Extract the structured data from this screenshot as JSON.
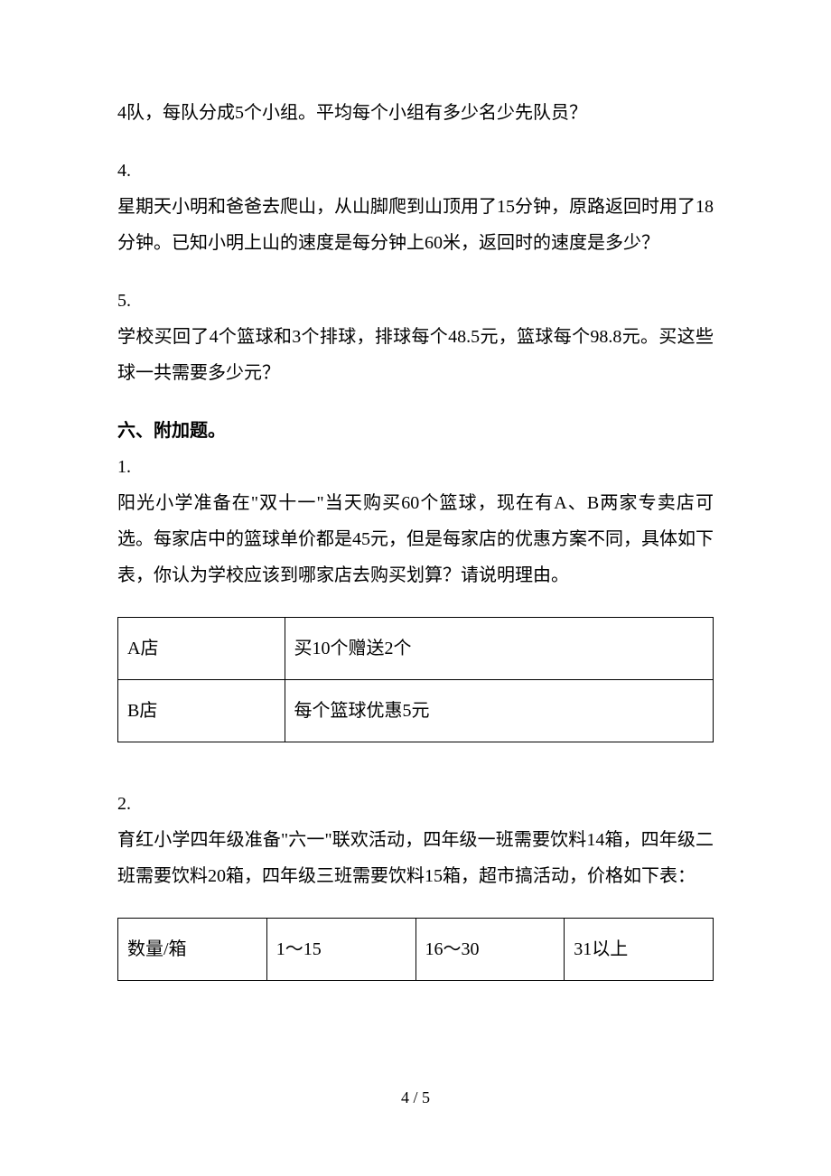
{
  "q3_cont": "4队，每队分成5个小组。平均每个小组有多少名少先队员？",
  "q4": {
    "num": "4.",
    "text": "星期天小明和爸爸去爬山，从山脚爬到山顶用了15分钟，原路返回时用了18分钟。已知小明上山的速度是每分钟上60米，返回时的速度是多少？"
  },
  "q5": {
    "num": "5.",
    "text": "学校买回了4个篮球和3个排球，排球每个48.5元，篮球每个98.8元。买这些球一共需要多少元？"
  },
  "section6": {
    "heading": "六、附加题。",
    "q1": {
      "num": "1.",
      "text": "阳光小学准备在\"双十一\"当天购买60个篮球，现在有A、B两家专卖店可选。每家店中的篮球单价都是45元，但是每家店的优惠方案不同，具体如下表，你认为学校应该到哪家店去购买划算？请说明理由。",
      "table": {
        "rows": [
          [
            "A店",
            "买10个赠送2个"
          ],
          [
            "B店",
            "每个篮球优惠5元"
          ]
        ]
      }
    },
    "q2": {
      "num": "2.",
      "text": "育红小学四年级准备\"六一\"联欢活动，四年级一班需要饮料14箱，四年级二班需要饮料20箱，四年级三班需要饮料15箱，超市搞活动，价格如下表：",
      "table": {
        "rows": [
          [
            "数量/箱",
            "1～15",
            "16～30",
            "31以上"
          ]
        ]
      }
    }
  },
  "pagenum": "4 / 5"
}
